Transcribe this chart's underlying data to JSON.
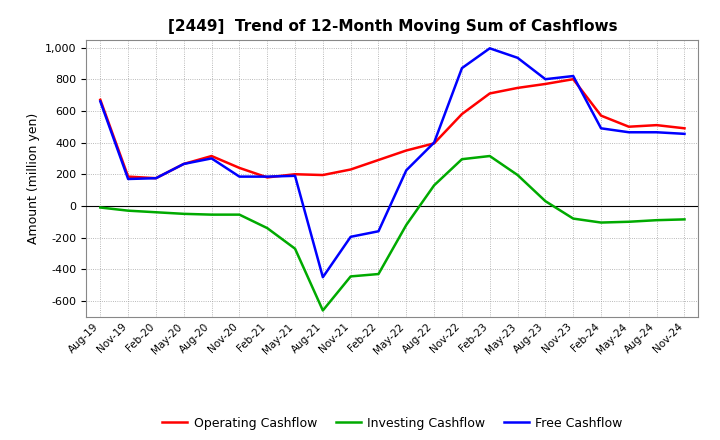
{
  "title": "[2449]  Trend of 12-Month Moving Sum of Cashflows",
  "ylabel": "Amount (million yen)",
  "x_labels": [
    "Aug-19",
    "Nov-19",
    "Feb-20",
    "May-20",
    "Aug-20",
    "Nov-20",
    "Feb-21",
    "May-21",
    "Aug-21",
    "Nov-21",
    "Feb-22",
    "May-22",
    "Aug-22",
    "Nov-22",
    "Feb-23",
    "May-23",
    "Aug-23",
    "Nov-23",
    "Feb-24",
    "May-24",
    "Aug-24",
    "Nov-24"
  ],
  "operating_cashflow": [
    670,
    185,
    175,
    265,
    315,
    240,
    180,
    200,
    195,
    230,
    290,
    350,
    395,
    580,
    710,
    745,
    770,
    800,
    570,
    500,
    510,
    490
  ],
  "investing_cashflow": [
    -10,
    -30,
    -40,
    -50,
    -55,
    -55,
    -140,
    -270,
    -660,
    -445,
    -430,
    -120,
    130,
    295,
    315,
    195,
    30,
    -80,
    -105,
    -100,
    -90,
    -85
  ],
  "free_cashflow": [
    660,
    170,
    175,
    265,
    300,
    185,
    185,
    190,
    -450,
    -195,
    -160,
    225,
    400,
    870,
    995,
    935,
    800,
    820,
    490,
    465,
    465,
    455
  ],
  "operating_color": "#FF0000",
  "investing_color": "#00AA00",
  "free_color": "#0000FF",
  "ylim": [
    -700,
    1050
  ],
  "yticks": [
    -600,
    -400,
    -200,
    0,
    200,
    400,
    600,
    800,
    1000
  ],
  "background_color": "#FFFFFF",
  "plot_bg_color": "#FFFFFF",
  "grid_color": "#999999"
}
